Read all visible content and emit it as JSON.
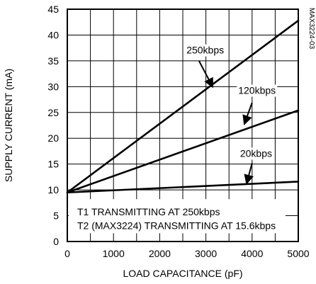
{
  "chart_data": {
    "type": "line",
    "xlabel": "LOAD CAPACITANCE (pF)",
    "ylabel": "SUPPLY CURRENT (mA)",
    "xlim": [
      0,
      5000
    ],
    "ylim": [
      0,
      45
    ],
    "x_ticks": [
      "0",
      "1000",
      "2000",
      "3000",
      "4000",
      "5000"
    ],
    "y_ticks": [
      "0",
      "5",
      "10",
      "15",
      "20",
      "25",
      "30",
      "35",
      "40",
      "45"
    ],
    "grid": true,
    "series": [
      {
        "name": "250kbps",
        "x": [
          0,
          5000
        ],
        "y": [
          9.5,
          42.8
        ]
      },
      {
        "name": "120kbps",
        "x": [
          0,
          5000
        ],
        "y": [
          9.5,
          25.4
        ]
      },
      {
        "name": "20kbps",
        "x": [
          0,
          5000
        ],
        "y": [
          9.5,
          11.6
        ]
      }
    ],
    "annotations": [
      "T1 TRANSMITTING AT 250kbps",
      "T2 (MAX3224) TRANSMITTING AT 15.6kbps"
    ],
    "figure_id": "MAX3224-03"
  }
}
